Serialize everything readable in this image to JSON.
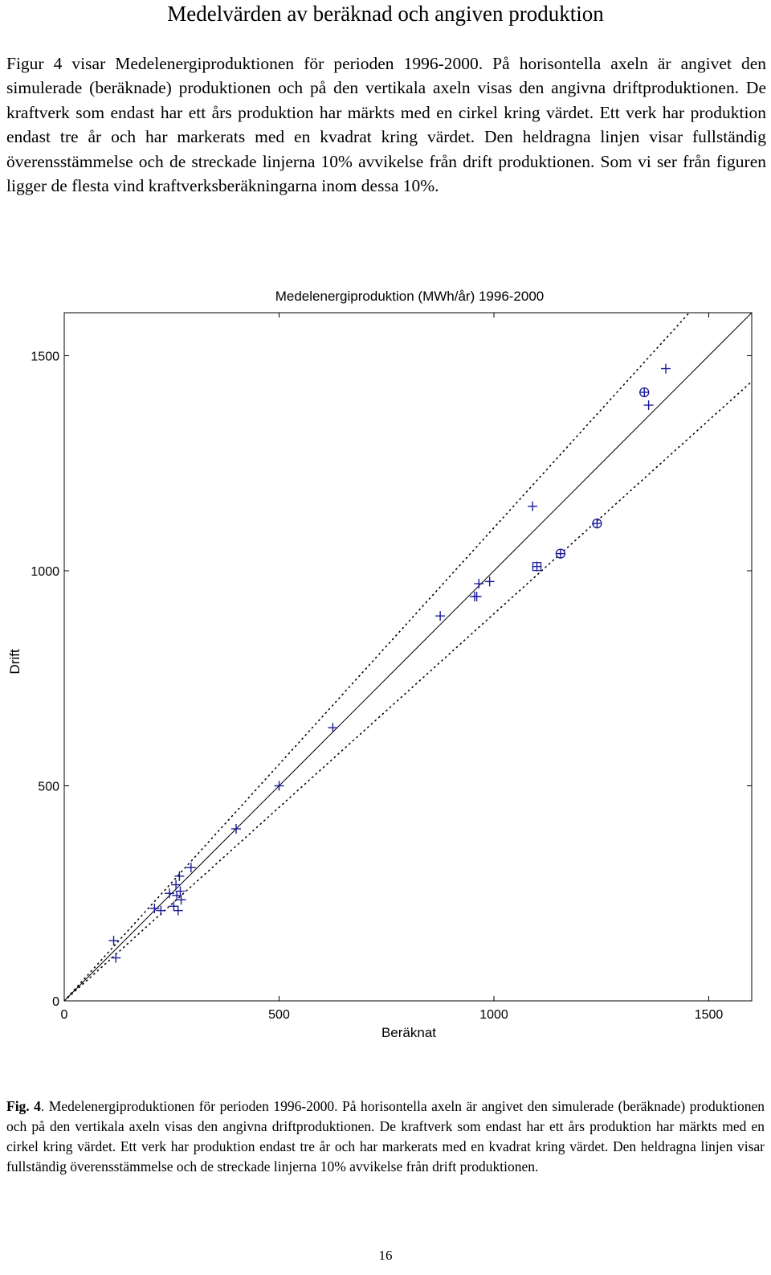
{
  "page": {
    "heading": "Medelvärden av beräknad och angiven produktion",
    "intro": "Figur 4 visar Medelenergiproduktionen för perioden 1996-2000. På horisontella axeln är angivet den simulerade (beräknade) produktionen och på den vertikala axeln visas den angivna driftproduktionen. De kraftverk som endast har ett års produktion har märkts med en cirkel kring värdet. Ett verk har produktion endast tre år och har markerats med en kvadrat kring värdet. Den heldragna linjen visar fullständig överensstämmelse och de streckade linjerna 10% avvikelse från drift produktionen. Som vi ser från figuren ligger de flesta vind kraftverksberäkningarna inom dessa 10%.",
    "caption_label": "Fig. 4",
    "caption_text": ". Medelenergiproduktionen för perioden 1996-2000. På horisontella axeln är angivet den simulerade (beräknade) produktionen och på den vertikala axeln visas den angivna driftproduktionen. De kraftverk som endast har ett års produktion har märkts med en cirkel kring värdet. Ett verk har produktion endast tre år och har markerats med en kvadrat kring värdet. Den heldragna linjen visar fullständig överensstämmelse och de streckade linjerna 10% avvikelse från drift produktionen.",
    "page_number": "16"
  },
  "chart_data": {
    "type": "scatter",
    "title": "Medelenergiproduktion (MWh/år) 1996-2000",
    "xlabel": "Beräknat",
    "ylabel": "Drift",
    "xlim": [
      0,
      1600
    ],
    "ylim": [
      0,
      1600
    ],
    "xticks": [
      0,
      500,
      1000,
      1500
    ],
    "yticks": [
      0,
      500,
      1000,
      1500
    ],
    "grid": false,
    "marker_color": "#1a1a9a",
    "reference_lines": {
      "solid": "y = x",
      "dotted": [
        "y = 1.1x",
        "y = 0.9x"
      ]
    },
    "points": [
      {
        "x": 115,
        "y": 140,
        "marker": "plus"
      },
      {
        "x": 120,
        "y": 100,
        "marker": "plus"
      },
      {
        "x": 210,
        "y": 215,
        "marker": "plus"
      },
      {
        "x": 225,
        "y": 210,
        "marker": "plus"
      },
      {
        "x": 245,
        "y": 250,
        "marker": "plus"
      },
      {
        "x": 255,
        "y": 220,
        "marker": "plus"
      },
      {
        "x": 260,
        "y": 270,
        "marker": "plus"
      },
      {
        "x": 262,
        "y": 245,
        "marker": "plus"
      },
      {
        "x": 265,
        "y": 210,
        "marker": "plus"
      },
      {
        "x": 268,
        "y": 290,
        "marker": "plus"
      },
      {
        "x": 270,
        "y": 255,
        "marker": "plus"
      },
      {
        "x": 272,
        "y": 235,
        "marker": "plus"
      },
      {
        "x": 295,
        "y": 310,
        "marker": "plus"
      },
      {
        "x": 400,
        "y": 400,
        "marker": "plus"
      },
      {
        "x": 500,
        "y": 500,
        "marker": "plus"
      },
      {
        "x": 625,
        "y": 635,
        "marker": "plus"
      },
      {
        "x": 875,
        "y": 895,
        "marker": "plus"
      },
      {
        "x": 955,
        "y": 940,
        "marker": "plus"
      },
      {
        "x": 960,
        "y": 940,
        "marker": "plus"
      },
      {
        "x": 965,
        "y": 970,
        "marker": "plus"
      },
      {
        "x": 990,
        "y": 975,
        "marker": "plus"
      },
      {
        "x": 1090,
        "y": 1150,
        "marker": "plus"
      },
      {
        "x": 1100,
        "y": 1010,
        "marker": "plus-square"
      },
      {
        "x": 1155,
        "y": 1040,
        "marker": "plus-circle"
      },
      {
        "x": 1240,
        "y": 1110,
        "marker": "plus-circle"
      },
      {
        "x": 1350,
        "y": 1415,
        "marker": "plus-circle"
      },
      {
        "x": 1360,
        "y": 1385,
        "marker": "plus"
      },
      {
        "x": 1400,
        "y": 1470,
        "marker": "plus"
      }
    ]
  }
}
